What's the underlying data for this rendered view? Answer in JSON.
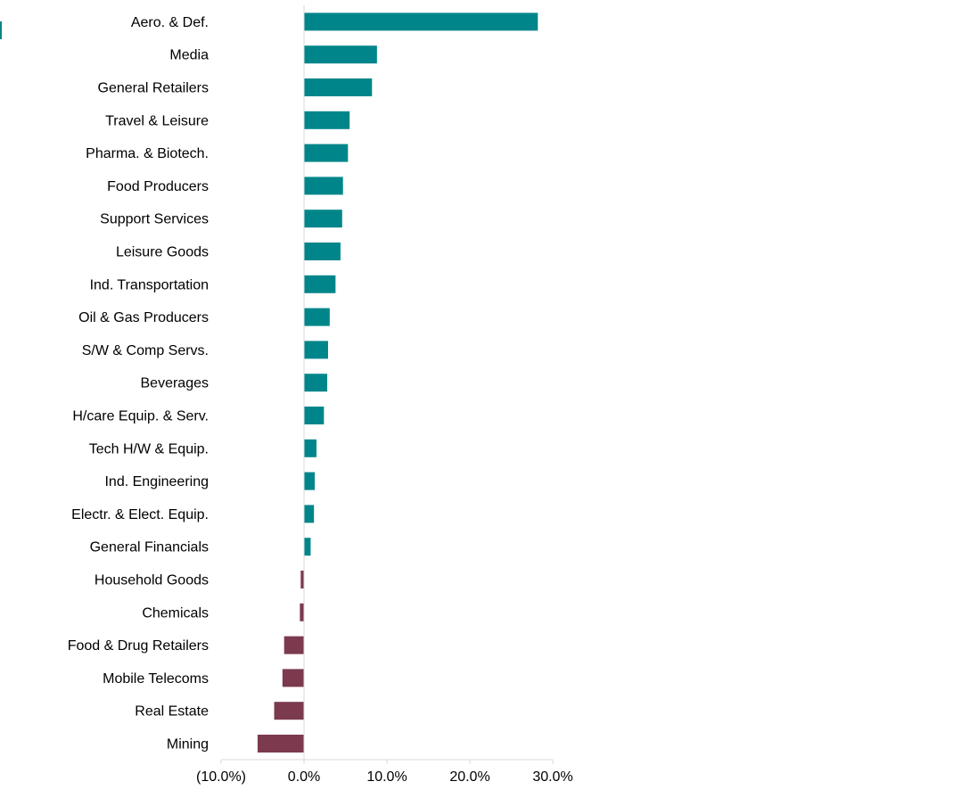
{
  "chart_data": {
    "type": "bar",
    "orientation": "horizontal",
    "categories": [
      "Aero. & Def.",
      "Media",
      "General Retailers",
      "Travel & Leisure",
      "Pharma. & Biotech.",
      "Food Producers",
      "Support Services",
      "Leisure Goods",
      "Ind. Transportation",
      "Oil & Gas Producers",
      "S/W & Comp Servs.",
      "Beverages",
      "H/care Equip. & Serv.",
      "Tech H/W & Equip.",
      "Ind. Engineering",
      "Electr. & Elect. Equip.",
      "General Financials",
      "Household Goods",
      "Chemicals",
      "Food & Drug Retailers",
      "Mobile Telecoms",
      "Real Estate",
      "Mining"
    ],
    "values": [
      28.2,
      8.8,
      8.2,
      5.5,
      5.3,
      4.7,
      4.6,
      4.4,
      3.8,
      3.1,
      2.9,
      2.8,
      2.4,
      1.5,
      1.3,
      1.2,
      0.8,
      -0.4,
      -0.5,
      -2.4,
      -2.6,
      -3.6,
      -5.6
    ],
    "title": "",
    "xlabel": "",
    "ylabel": "",
    "xlim": [
      -10,
      30
    ],
    "x_ticks": [
      -10,
      0,
      10,
      20,
      30
    ],
    "x_tick_labels": [
      "(10.0%)",
      "0.0%",
      "10.0%",
      "20.0%",
      "30.0%"
    ],
    "grid": false,
    "legend": "none",
    "colors": {
      "positive": "#00868a",
      "negative": "#7b3a4e",
      "axis": "#d9d9d9",
      "text": "#000000"
    }
  }
}
